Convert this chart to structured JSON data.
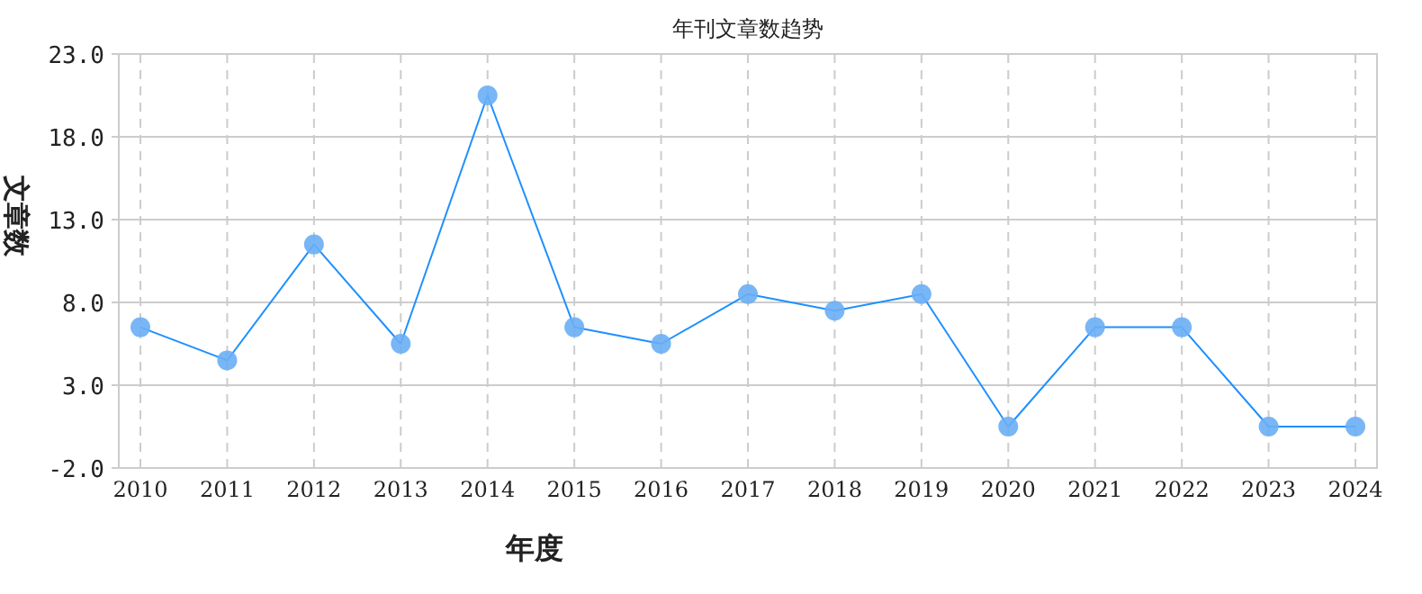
{
  "chart_data": {
    "type": "line",
    "title": "年刊文章数趋势",
    "xlabel": "年度",
    "ylabel": "文章数",
    "categories": [
      "2010",
      "2011",
      "2012",
      "2013",
      "2014",
      "2015",
      "2016",
      "2017",
      "2018",
      "2019",
      "2020",
      "2021",
      "2022",
      "2023",
      "2024"
    ],
    "series": [
      {
        "color": "#1e90ff",
        "values": [
          6.5,
          4.5,
          11.5,
          5.5,
          20.5,
          6.5,
          5.5,
          8.5,
          7.5,
          8.5,
          0.5,
          6.5,
          6.5,
          0.5,
          0.5
        ]
      }
    ],
    "ylim": [
      -2,
      23
    ],
    "yticks": [
      {
        "value": -2,
        "label": "-2.0"
      },
      {
        "value": 3,
        "label": "3.0"
      },
      {
        "value": 8,
        "label": "8.0"
      },
      {
        "value": 13,
        "label": "13.0"
      },
      {
        "value": 18,
        "label": "18.0"
      },
      {
        "value": 23,
        "label": "23.0"
      }
    ],
    "grid": true,
    "marker": "circle",
    "line_style": "solid"
  }
}
